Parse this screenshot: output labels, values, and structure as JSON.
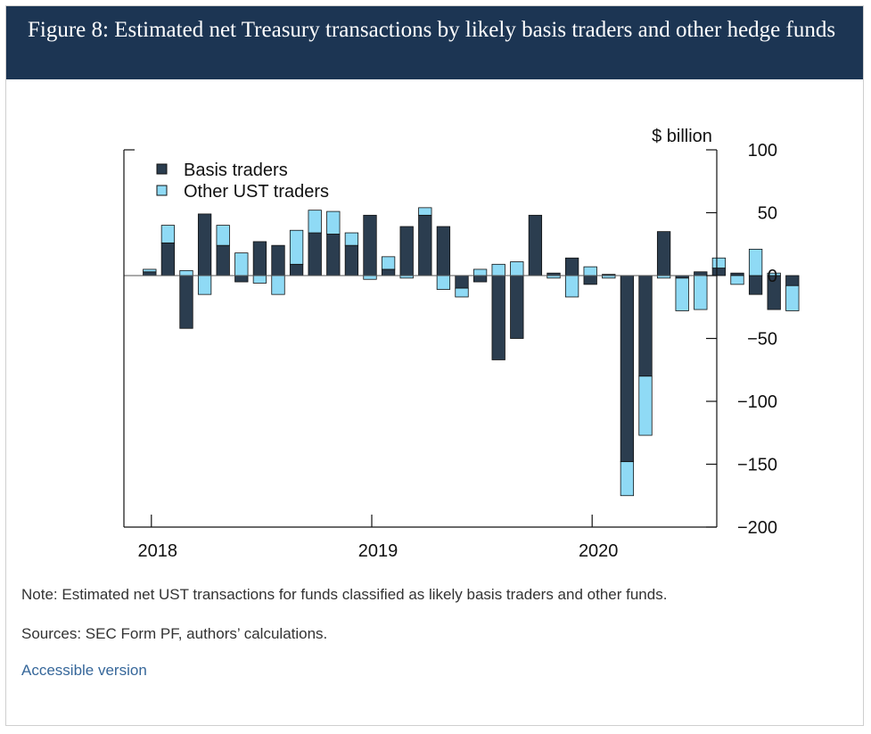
{
  "figure": {
    "title": "Figure 8: Estimated net Treasury transactions by likely basis traders and other hedge funds"
  },
  "notes": {
    "note": "Note: Estimated net UST transactions for funds classified as likely basis traders and other funds.",
    "sources": "Sources: SEC Form PF, authors’ calculations.",
    "accessible_link": "Accessible version"
  },
  "colors": {
    "basis": "#2b3d4f",
    "other": "#8fdaf5",
    "header_bg": "#1c3553",
    "link": "#36679a"
  },
  "chart_data": {
    "type": "bar",
    "stacked": true,
    "ylabel": "$ billion",
    "ylim": [
      -200,
      100
    ],
    "y_ticks": [
      100,
      50,
      0,
      -50,
      -100,
      -150,
      -200
    ],
    "y_tick_labels": [
      "100",
      "50",
      "0",
      "−50",
      "−100",
      "−150",
      "−200"
    ],
    "x_tick_labels": [
      "2018",
      "2019",
      "2020"
    ],
    "grid": false,
    "legend_position": "top-left",
    "frequency": "monthly",
    "x_start": "2018-01",
    "x": [
      "2018-01",
      "2018-02",
      "2018-03",
      "2018-04",
      "2018-05",
      "2018-06",
      "2018-07",
      "2018-08",
      "2018-09",
      "2018-10",
      "2018-11",
      "2018-12",
      "2019-01",
      "2019-02",
      "2019-03",
      "2019-04",
      "2019-05",
      "2019-06",
      "2019-07",
      "2019-08",
      "2019-09",
      "2019-10",
      "2019-11",
      "2019-12",
      "2020-01",
      "2020-02",
      "2020-03",
      "2020-04",
      "2020-05",
      "2020-06",
      "2020-07",
      "2020-08",
      "2020-09",
      "2020-10",
      "2020-11",
      "2020-12"
    ],
    "series": [
      {
        "name": "Basis traders",
        "values": [
          3,
          26,
          -42,
          49,
          24,
          -5,
          27,
          24,
          9,
          34,
          33,
          24,
          48,
          5,
          39,
          48,
          39,
          -10,
          -5,
          -67,
          -50,
          48,
          2,
          14,
          -7,
          1,
          -148,
          -80,
          35,
          -2,
          3,
          6,
          2,
          -15,
          -27,
          -8
        ]
      },
      {
        "name": "Other UST traders",
        "values": [
          2,
          14,
          4,
          -15,
          16,
          18,
          -6,
          -15,
          27,
          18,
          18,
          10,
          -3,
          10,
          -2,
          6,
          -11,
          -7,
          5,
          9,
          11,
          0,
          -2,
          -17,
          7,
          -2,
          -27,
          -47,
          -2,
          -26,
          -27,
          8,
          -7,
          21,
          2,
          -20
        ]
      }
    ]
  }
}
